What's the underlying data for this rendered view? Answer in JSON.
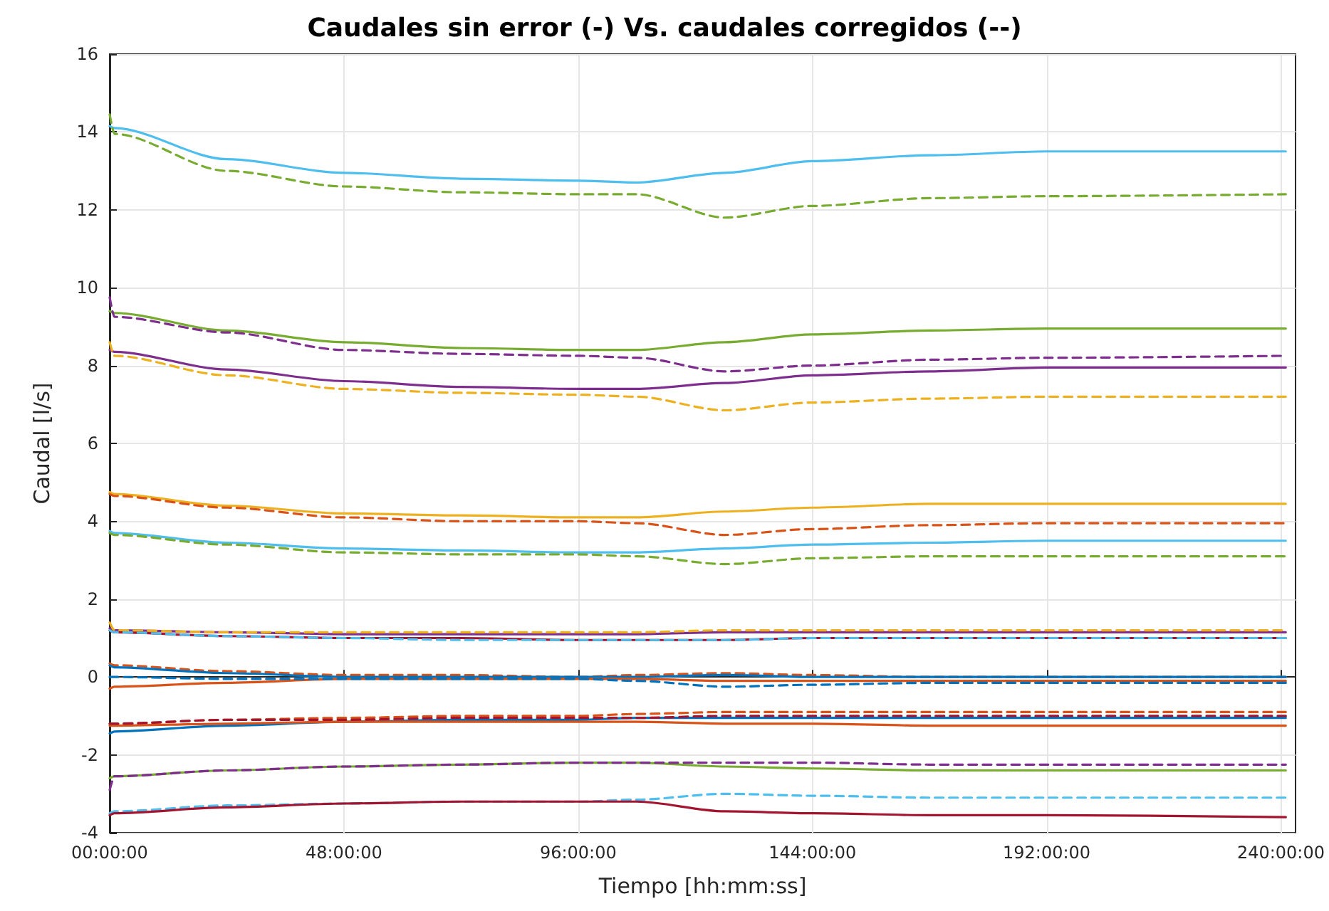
{
  "chart_data": {
    "type": "line",
    "title": "Caudales sin error (-) Vs. caudales corregidos (--)",
    "xlabel": "Tiempo [hh:mm:ss]",
    "ylabel": "Caudal [l/s]",
    "x": [
      0,
      1,
      24,
      48,
      72,
      96,
      108,
      126,
      144,
      168,
      192,
      241
    ],
    "xlim": [
      0,
      243
    ],
    "xticks": [
      {
        "value": 0,
        "label": "00:00:00"
      },
      {
        "value": 48,
        "label": "48:00:00"
      },
      {
        "value": 96,
        "label": "96:00:00"
      },
      {
        "value": 144,
        "label": "144:00:00"
      },
      {
        "value": 192,
        "label": "192:00:00"
      },
      {
        "value": 240,
        "label": "240:00:00"
      }
    ],
    "ylim": [
      -4,
      16
    ],
    "yticks": [
      -4,
      -2,
      0,
      2,
      4,
      6,
      8,
      10,
      12,
      14,
      16
    ],
    "grid": true,
    "marker": "none",
    "series": [
      {
        "color": "#4dbeee",
        "line_style": "solid",
        "values": [
          14.15,
          14.1,
          13.3,
          12.95,
          12.8,
          12.75,
          12.7,
          12.95,
          13.25,
          13.4,
          13.5,
          13.5
        ]
      },
      {
        "color": "#77ac30",
        "line_style": "dashed",
        "values": [
          14.45,
          13.95,
          13.0,
          12.6,
          12.45,
          12.4,
          12.4,
          11.8,
          12.1,
          12.3,
          12.35,
          12.4
        ]
      },
      {
        "color": "#77ac30",
        "line_style": "solid",
        "values": [
          9.4,
          9.35,
          8.9,
          8.6,
          8.45,
          8.4,
          8.4,
          8.6,
          8.8,
          8.9,
          8.95,
          8.95
        ]
      },
      {
        "color": "#7e2f8e",
        "line_style": "dashed",
        "values": [
          9.75,
          9.25,
          8.85,
          8.4,
          8.3,
          8.25,
          8.2,
          7.85,
          8.0,
          8.15,
          8.2,
          8.25
        ]
      },
      {
        "color": "#7e2f8e",
        "line_style": "solid",
        "values": [
          8.4,
          8.35,
          7.9,
          7.6,
          7.45,
          7.4,
          7.4,
          7.55,
          7.75,
          7.85,
          7.95,
          7.95
        ]
      },
      {
        "color": "#edb120",
        "line_style": "dashed",
        "values": [
          8.6,
          8.25,
          7.75,
          7.4,
          7.3,
          7.25,
          7.2,
          6.85,
          7.05,
          7.15,
          7.2,
          7.2
        ]
      },
      {
        "color": "#edb120",
        "line_style": "solid",
        "values": [
          4.75,
          4.7,
          4.4,
          4.2,
          4.15,
          4.1,
          4.1,
          4.25,
          4.35,
          4.45,
          4.45,
          4.45
        ]
      },
      {
        "color": "#d95319",
        "line_style": "dashed",
        "values": [
          4.7,
          4.65,
          4.35,
          4.1,
          4.0,
          4.0,
          3.95,
          3.65,
          3.8,
          3.9,
          3.95,
          3.95
        ]
      },
      {
        "color": "#4dbeee",
        "line_style": "solid",
        "values": [
          3.75,
          3.7,
          3.45,
          3.3,
          3.25,
          3.2,
          3.2,
          3.3,
          3.4,
          3.45,
          3.5,
          3.5
        ]
      },
      {
        "color": "#77ac30",
        "line_style": "dashed",
        "values": [
          3.7,
          3.65,
          3.4,
          3.2,
          3.15,
          3.15,
          3.1,
          2.9,
          3.05,
          3.1,
          3.1,
          3.1
        ]
      },
      {
        "color": "#7e2f8e",
        "line_style": "solid",
        "values": [
          1.25,
          1.2,
          1.15,
          1.1,
          1.1,
          1.1,
          1.1,
          1.15,
          1.15,
          1.15,
          1.15,
          1.15
        ]
      },
      {
        "color": "#edb120",
        "line_style": "dashed",
        "values": [
          1.4,
          1.2,
          1.15,
          1.15,
          1.15,
          1.15,
          1.15,
          1.2,
          1.2,
          1.2,
          1.2,
          1.2
        ]
      },
      {
        "color": "#a2142f",
        "line_style": "solid",
        "values": [
          1.2,
          1.15,
          1.05,
          1.0,
          1.0,
          0.95,
          0.95,
          0.95,
          1.0,
          1.0,
          1.0,
          1.0
        ]
      },
      {
        "color": "#4dbeee",
        "line_style": "dashed",
        "values": [
          1.2,
          1.15,
          1.05,
          1.0,
          0.95,
          0.95,
          0.95,
          0.95,
          1.0,
          1.0,
          1.0,
          1.0
        ]
      },
      {
        "color": "#d95319",
        "line_style": "dashed",
        "values": [
          0.35,
          0.3,
          0.15,
          0.05,
          0.05,
          0.0,
          0.05,
          0.1,
          0.05,
          0.0,
          0.0,
          0.0
        ]
      },
      {
        "color": "#0072bd",
        "line_style": "solid",
        "values": [
          0.3,
          0.25,
          0.1,
          0.0,
          0.0,
          0.0,
          0.0,
          0.05,
          0.0,
          0.0,
          0.0,
          0.0
        ]
      },
      {
        "color": "#d95319",
        "line_style": "solid",
        "values": [
          -0.3,
          -0.25,
          -0.15,
          -0.05,
          -0.05,
          -0.05,
          -0.05,
          -0.1,
          -0.1,
          -0.1,
          -0.1,
          -0.1
        ]
      },
      {
        "color": "#0072bd",
        "line_style": "dashed",
        "values": [
          0.0,
          0.0,
          -0.05,
          -0.05,
          -0.05,
          -0.05,
          -0.1,
          -0.25,
          -0.2,
          -0.15,
          -0.15,
          -0.15
        ]
      },
      {
        "color": "#d95319",
        "line_style": "dashed",
        "values": [
          -1.2,
          -1.2,
          -1.1,
          -1.05,
          -1.0,
          -1.0,
          -0.95,
          -0.9,
          -0.9,
          -0.9,
          -0.9,
          -0.9
        ]
      },
      {
        "color": "#0072bd",
        "line_style": "solid",
        "values": [
          -1.45,
          -1.4,
          -1.25,
          -1.15,
          -1.1,
          -1.1,
          -1.05,
          -1.05,
          -1.05,
          -1.05,
          -1.05,
          -1.05
        ]
      },
      {
        "color": "#d95319",
        "line_style": "solid",
        "values": [
          -1.25,
          -1.25,
          -1.2,
          -1.15,
          -1.15,
          -1.15,
          -1.15,
          -1.2,
          -1.2,
          -1.25,
          -1.25,
          -1.25
        ]
      },
      {
        "color": "#a2142f",
        "line_style": "dashed",
        "values": [
          -1.2,
          -1.2,
          -1.1,
          -1.1,
          -1.05,
          -1.05,
          -1.05,
          -1.0,
          -1.0,
          -1.0,
          -1.0,
          -1.0
        ]
      },
      {
        "color": "#77ac30",
        "line_style": "solid",
        "values": [
          -2.6,
          -2.55,
          -2.4,
          -2.3,
          -2.25,
          -2.2,
          -2.2,
          -2.3,
          -2.35,
          -2.4,
          -2.4,
          -2.4
        ]
      },
      {
        "color": "#7e2f8e",
        "line_style": "dashed",
        "values": [
          -2.9,
          -2.55,
          -2.4,
          -2.3,
          -2.25,
          -2.2,
          -2.2,
          -2.2,
          -2.2,
          -2.25,
          -2.25,
          -2.25
        ]
      },
      {
        "color": "#4dbeee",
        "line_style": "dashed",
        "values": [
          -3.5,
          -3.45,
          -3.3,
          -3.25,
          -3.2,
          -3.2,
          -3.15,
          -3.0,
          -3.05,
          -3.1,
          -3.1,
          -3.1
        ]
      },
      {
        "color": "#a2142f",
        "line_style": "solid",
        "values": [
          -3.55,
          -3.5,
          -3.35,
          -3.25,
          -3.2,
          -3.2,
          -3.2,
          -3.45,
          -3.5,
          -3.55,
          -3.55,
          -3.6
        ]
      }
    ]
  }
}
